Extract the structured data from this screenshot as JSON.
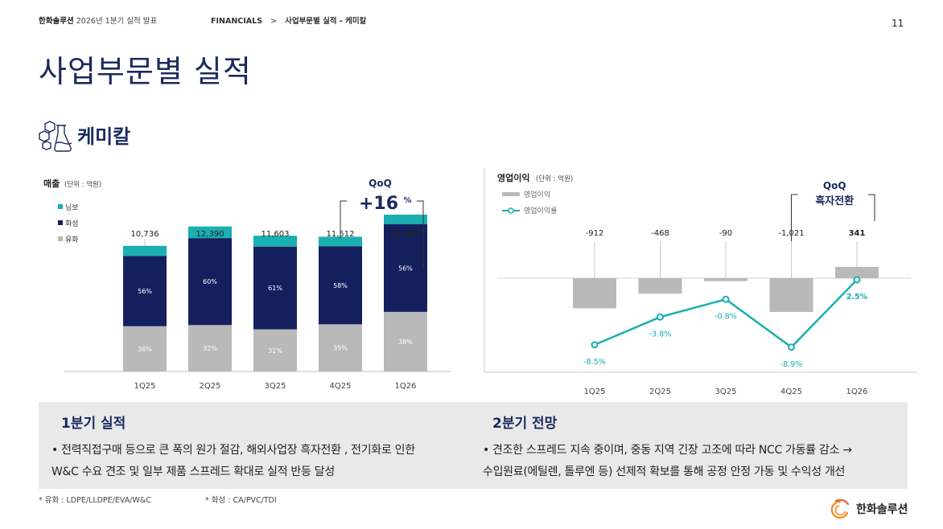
{
  "header": {
    "company": "한화솔루션",
    "doc_title": "2026년 1분기 실적 발표",
    "crumb_section": "FINANCIALS",
    "crumb_sep": ">",
    "crumb_page": "사업부문별 실적 - 케미칼",
    "page_number": "11"
  },
  "title": "사업부문별 실적",
  "section": {
    "name": "케미칼",
    "icon": "flask-icon"
  },
  "colors": {
    "navy": "#14205e",
    "teal": "#1aafb0",
    "gray": "#b9b9b9",
    "title": "#1b2a5e"
  },
  "chart_data": [
    {
      "type": "stacked-bar",
      "title": "매출",
      "unit": "(단위 : 억원)",
      "categories": [
        "1Q25",
        "2Q25",
        "3Q25",
        "4Q25",
        "1Q26"
      ],
      "totals": [
        "10,736",
        "12,390",
        "11,603",
        "11,512",
        "13,401"
      ],
      "total_values": [
        10736,
        12390,
        11603,
        11512,
        13401
      ],
      "series": [
        {
          "name": "유화",
          "share_pct": [
            36,
            32,
            31,
            35,
            38
          ],
          "labels": [
            "36%",
            "32%",
            "31%",
            "35%",
            "38%"
          ]
        },
        {
          "name": "화성",
          "share_pct": [
            56,
            60,
            61,
            58,
            56
          ],
          "labels": [
            "56%",
            "60%",
            "61%",
            "58%",
            "56%"
          ]
        },
        {
          "name": "닝보",
          "share_pct": [
            8,
            8,
            8,
            7,
            6
          ]
        }
      ],
      "legend": [
        "닝보",
        "화성",
        "유화"
      ],
      "annotation": {
        "label": "QoQ",
        "value": "+16",
        "suffix": "%"
      }
    },
    {
      "type": "bar-line",
      "title": "영업이익",
      "unit": "(단위 : 억원)",
      "categories": [
        "1Q25",
        "2Q25",
        "3Q25",
        "4Q25",
        "1Q26"
      ],
      "bar_series": {
        "name": "영업이익",
        "values": [
          -912,
          -468,
          -90,
          -1021,
          341
        ],
        "labels": [
          "-912",
          "-468",
          "-90",
          "-1,021",
          "341"
        ]
      },
      "line_series": {
        "name": "영업이익률",
        "values": [
          -8.5,
          -3.8,
          -0.8,
          -8.9,
          2.5
        ],
        "labels": [
          "-8.5%",
          "-3.8%",
          "-0.8%",
          "-8.9%",
          "2.5%"
        ]
      },
      "annotation": {
        "label": "QoQ",
        "value": "흑자전환"
      }
    }
  ],
  "outlook": {
    "q1": {
      "title": "1분기 실적",
      "line1": "전력직접구매 등으로 큰 폭의 원가 절감, 해외사업장 흑자전환 , 전기화로 인한",
      "line2": "W&C 수요 견조  및 일부 제품 스프레드 확대로 실적 반등 달성"
    },
    "q2": {
      "title": "2분기 전망",
      "line1": "견조한 스프레드 지속 중이며, 중동 지역 긴장 고조에 따라 NCC 가동률 감소 →",
      "line2": "수입원료(에틸렌, 톨루엔 등) 선제적 확보를 통해 공정 안정 가동 및 수익성 개선"
    },
    "bullet": "•"
  },
  "footnotes": {
    "note1": "* 유화 : LDPE/LLDPE/EVA/W&C",
    "note2": "* 화성 : CA/PVC/TDI"
  },
  "logo": {
    "text": "한화솔루션"
  }
}
